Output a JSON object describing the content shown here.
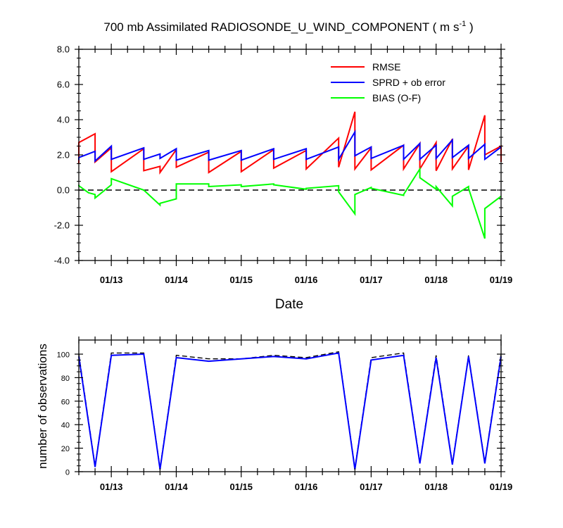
{
  "chart_data": [
    {
      "type": "line",
      "title": "700 mb Assimilated RADIOSONDE_U_WIND_COMPONENT ( m s",
      "title_exponent": "-1",
      "title_suffix": " )",
      "xlabel": "Date",
      "ylabel": "",
      "x_tick_labels": [
        "01/13",
        "01/14",
        "01/15",
        "01/16",
        "01/17",
        "01/18",
        "01/19"
      ],
      "x_tick_days": [
        13,
        14,
        15,
        16,
        17,
        18,
        19
      ],
      "xlim": [
        12.5,
        19.0
      ],
      "ylim": [
        -4.0,
        8.0
      ],
      "y_tick_labels": [
        "-4.0",
        "-2.0",
        "0.0",
        "2.0",
        "4.0",
        "6.0",
        "8.0"
      ],
      "y_tick_values": [
        -4,
        -2,
        0,
        2,
        4,
        6,
        8
      ],
      "zero_line": {
        "y": 0,
        "style": "dashed",
        "color": "#000000"
      },
      "grid": false,
      "legend_placement": "top-right",
      "series": [
        {
          "name": "RMSE",
          "color": "#ff0000",
          "x": [
            12.5,
            12.5,
            12.75,
            12.75,
            13.0,
            13.0,
            13.5,
            13.5,
            13.75,
            13.75,
            14.0,
            14.0,
            14.5,
            14.5,
            15.0,
            15.0,
            15.5,
            15.5,
            16.0,
            16.0,
            16.5,
            16.5,
            16.75,
            16.75,
            17.0,
            17.0,
            17.5,
            17.5,
            17.75,
            17.75,
            18.0,
            18.0,
            18.25,
            18.25,
            18.5,
            18.5,
            18.75,
            18.75,
            19.0,
            19.0
          ],
          "y": [
            1.5,
            2.7,
            3.2,
            1.6,
            2.4,
            1.05,
            2.35,
            1.1,
            1.35,
            1.0,
            2.3,
            1.3,
            2.15,
            1.0,
            2.2,
            1.05,
            2.3,
            1.25,
            2.25,
            1.2,
            2.95,
            1.3,
            4.45,
            1.2,
            2.4,
            1.15,
            2.55,
            1.2,
            2.65,
            1.2,
            2.7,
            1.1,
            2.9,
            1.2,
            2.5,
            1.15,
            4.25,
            2.0,
            2.5,
            1.6
          ]
        },
        {
          "name": "SPRD + ob error",
          "color": "#0000ff",
          "x": [
            12.5,
            12.5,
            12.75,
            12.75,
            13.0,
            13.0,
            13.5,
            13.5,
            13.75,
            13.75,
            14.0,
            14.0,
            14.5,
            14.5,
            15.0,
            15.0,
            15.5,
            15.5,
            16.0,
            16.0,
            16.5,
            16.5,
            16.75,
            16.75,
            17.0,
            17.0,
            17.5,
            17.5,
            17.75,
            17.75,
            18.0,
            18.0,
            18.25,
            18.25,
            18.5,
            18.5,
            18.75,
            18.75,
            19.0
          ],
          "y": [
            1.7,
            1.85,
            2.2,
            1.65,
            2.5,
            1.75,
            2.4,
            1.75,
            2.05,
            1.8,
            2.35,
            1.7,
            2.25,
            1.7,
            2.25,
            1.7,
            2.35,
            1.75,
            2.35,
            1.75,
            2.45,
            1.75,
            3.3,
            1.95,
            2.45,
            1.8,
            2.55,
            1.75,
            2.65,
            1.75,
            2.55,
            1.8,
            2.85,
            1.85,
            2.55,
            1.8,
            2.6,
            1.75,
            2.45
          ]
        },
        {
          "name": "BIAS (O-F)",
          "color": "#00ff00",
          "x": [
            12.5,
            12.5,
            12.65,
            12.75,
            12.75,
            13.0,
            13.0,
            13.5,
            13.75,
            13.75,
            14.0,
            14.0,
            14.5,
            14.5,
            15.0,
            15.0,
            15.5,
            15.5,
            16.0,
            16.0,
            16.5,
            16.5,
            16.75,
            16.75,
            17.0,
            17.0,
            17.5,
            17.5,
            17.75,
            17.75,
            18.0,
            18.0,
            18.25,
            18.25,
            18.5,
            18.5,
            18.75,
            18.75,
            19.0
          ],
          "y": [
            0.3,
            0.25,
            -0.15,
            -0.25,
            -0.45,
            0.3,
            0.65,
            0.0,
            -0.85,
            -0.75,
            -0.5,
            0.35,
            0.35,
            0.2,
            0.3,
            0.2,
            0.35,
            0.3,
            0.05,
            0.1,
            0.25,
            -0.1,
            -1.35,
            -0.25,
            0.15,
            0.1,
            -0.3,
            -0.25,
            1.2,
            0.7,
            0.05,
            0.2,
            -0.9,
            -0.35,
            0.2,
            0.1,
            -2.75,
            -1.05,
            -0.35
          ]
        }
      ]
    },
    {
      "type": "line",
      "title": "",
      "xlabel": "",
      "ylabel": "number of observations",
      "x_tick_labels": [
        "01/13",
        "01/14",
        "01/15",
        "01/16",
        "01/17",
        "01/18",
        "01/19"
      ],
      "x_tick_days": [
        13,
        14,
        15,
        16,
        17,
        18,
        19
      ],
      "xlim": [
        12.5,
        19.0
      ],
      "ylim": [
        0,
        112
      ],
      "y_tick_labels": [
        "0",
        "20",
        "40",
        "60",
        "80",
        "100"
      ],
      "y_tick_values": [
        0,
        20,
        40,
        60,
        80,
        100
      ],
      "grid": false,
      "legend_placement": "none",
      "series": [
        {
          "name": "",
          "style": "dashed",
          "color": "#000000",
          "x": [
            12.5,
            12.75,
            13.0,
            13.5,
            13.75,
            14.0,
            14.5,
            15.0,
            15.5,
            16.0,
            16.5,
            16.75,
            17.0,
            17.5,
            17.75,
            18.0,
            18.25,
            18.5,
            18.75,
            19.0
          ],
          "y": [
            100,
            5,
            101,
            101,
            3,
            99,
            96,
            96,
            99,
            97,
            102,
            3,
            97,
            101,
            8,
            99,
            7,
            99,
            8,
            100
          ]
        },
        {
          "name": "",
          "style": "solid",
          "color": "#0000ff",
          "x": [
            12.5,
            12.75,
            13.0,
            13.5,
            13.75,
            14.0,
            14.5,
            15.0,
            15.5,
            16.0,
            16.5,
            16.75,
            17.0,
            17.5,
            17.75,
            18.0,
            18.25,
            18.5,
            18.75,
            19.0
          ],
          "y": [
            98,
            4,
            99,
            100,
            2,
            97,
            94,
            96,
            98,
            96,
            101,
            2,
            95,
            99,
            7,
            97,
            6,
            98,
            7,
            98
          ]
        }
      ]
    }
  ]
}
